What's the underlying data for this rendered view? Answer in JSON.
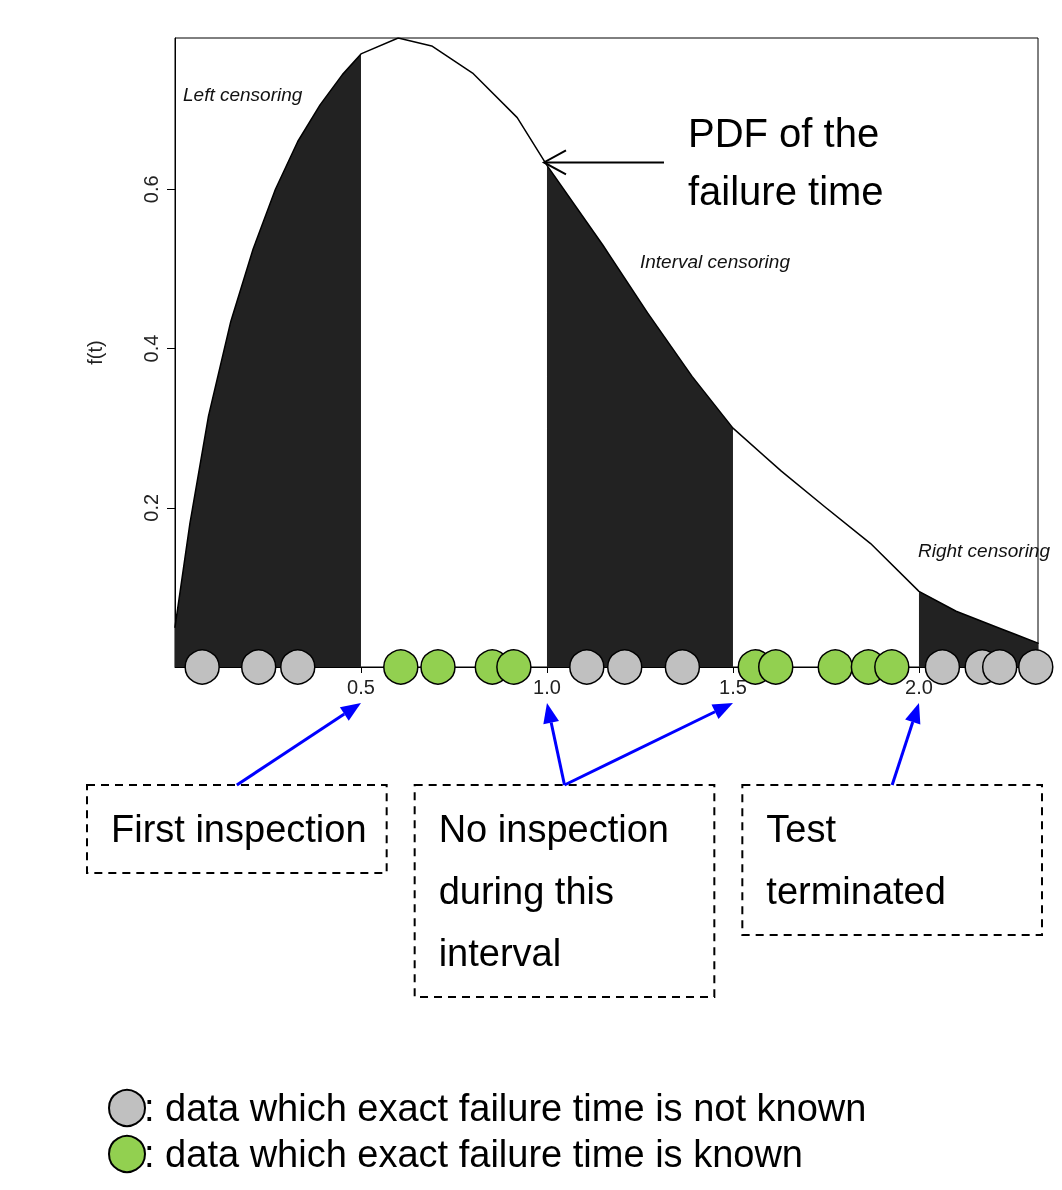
{
  "chart_data": {
    "type": "line",
    "ylabel": "f(t)",
    "xlim": [
      0,
      2.32
    ],
    "ylim": [
      0,
      0.79
    ],
    "xticks": [
      {
        "value": 0.5,
        "label": "0.5"
      },
      {
        "value": 1,
        "label": "1.0"
      },
      {
        "value": 1.5,
        "label": "1.5"
      },
      {
        "value": 2,
        "label": "2.0"
      }
    ],
    "yticks": [
      0.2,
      0.4,
      0.6
    ],
    "legend": "bottom",
    "series": [
      {
        "type": "area",
        "name": "Left censoring",
        "color": "#222222",
        "x": [
          0,
          0.04,
          0.09,
          0.15,
          0.21,
          0.27,
          0.33,
          0.39,
          0.45,
          0.5
        ],
        "values": [
          0.05,
          0.18,
          0.315,
          0.434,
          0.525,
          0.6,
          0.66,
          0.706,
          0.744,
          0.77
        ]
      },
      {
        "type": "area",
        "name": "Interval censoring",
        "color": "#222222",
        "x": [
          1.0,
          1.15,
          1.27,
          1.39,
          1.5
        ],
        "values": [
          0.63,
          0.53,
          0.445,
          0.365,
          0.3
        ]
      },
      {
        "type": "area",
        "name": "Right censoring",
        "color": "#222222",
        "x": [
          2.0,
          2.1,
          2.22,
          2.32
        ],
        "values": [
          0.095,
          0.07,
          0.048,
          0.03
        ]
      },
      {
        "color": "#000000",
        "line_style": "solid",
        "x": [
          0,
          0.04,
          0.09,
          0.15,
          0.21,
          0.27,
          0.33,
          0.39,
          0.45,
          0.5,
          0.6,
          0.69,
          0.8,
          0.92,
          1.0,
          1.15,
          1.27,
          1.39,
          1.5,
          1.63,
          1.75,
          1.87,
          2.0,
          2.1,
          2.22,
          2.32
        ],
        "values": [
          0.05,
          0.18,
          0.315,
          0.434,
          0.525,
          0.6,
          0.66,
          0.706,
          0.744,
          0.77,
          0.79,
          0.78,
          0.746,
          0.69,
          0.63,
          0.53,
          0.445,
          0.365,
          0.3,
          0.246,
          0.2,
          0.155,
          0.095,
          0.07,
          0.048,
          0.03
        ]
      },
      {
        "type": "scatter",
        "marker": "circle",
        "name": ": data which exact failure time is not known",
        "color": "#c0c0c0",
        "x": [
          0.073,
          0.225,
          0.33,
          1.107,
          1.209,
          1.364,
          2.063,
          2.17,
          2.217,
          2.314
        ],
        "values": [
          0,
          0,
          0,
          0,
          0,
          0,
          0,
          0,
          0,
          0
        ]
      },
      {
        "type": "scatter",
        "marker": "circle",
        "name": ": data which exact failure time is known",
        "color": "#92d050",
        "x": [
          0.607,
          0.707,
          0.853,
          0.911,
          1.56,
          1.615,
          1.775,
          1.864,
          1.927
        ],
        "values": [
          0,
          0,
          0,
          0,
          0,
          0,
          0,
          0,
          0
        ]
      }
    ],
    "annotations": [
      "PDF of the failure time",
      "First inspection",
      "No inspection during this interval",
      "Test terminated"
    ]
  }
}
